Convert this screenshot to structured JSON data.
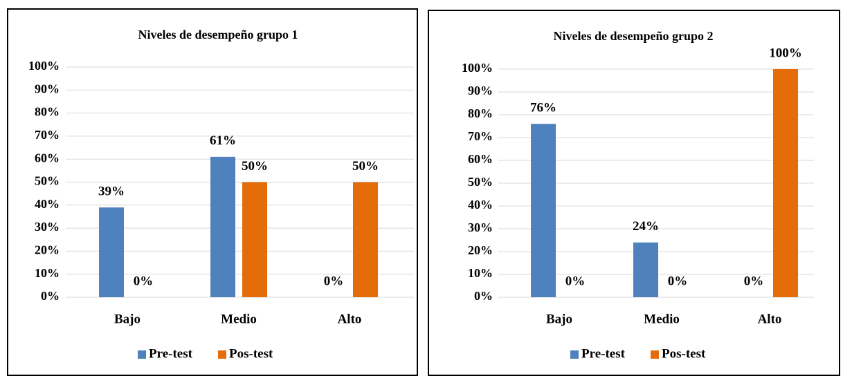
{
  "chart_data": [
    {
      "type": "bar",
      "title": "Niveles de desempeño grupo 1",
      "categories": [
        "Bajo",
        "Medio",
        "Alto"
      ],
      "series": [
        {
          "name": "Pre-test",
          "color": "#4f81bd",
          "values": [
            39,
            61,
            0
          ],
          "value_labels": [
            "39%",
            "61%",
            "0%"
          ]
        },
        {
          "name": "Pos-test",
          "color": "#e46c0a",
          "values": [
            0,
            50,
            50
          ],
          "value_labels": [
            "0%",
            "50%",
            "50%"
          ]
        }
      ],
      "ylim": [
        0,
        100
      ],
      "yticks": [
        {
          "value": 0,
          "label": "0%"
        },
        {
          "value": 10,
          "label": "10%"
        },
        {
          "value": 20,
          "label": "20%"
        },
        {
          "value": 30,
          "label": "30%"
        },
        {
          "value": 40,
          "label": "40%"
        },
        {
          "value": 50,
          "label": "50%"
        },
        {
          "value": 60,
          "label": "60%"
        },
        {
          "value": 70,
          "label": "70%"
        },
        {
          "value": 80,
          "label": "80%"
        },
        {
          "value": 90,
          "label": "90%"
        },
        {
          "value": 100,
          "label": "100%"
        }
      ],
      "grid": true,
      "legend": "bottom"
    },
    {
      "type": "bar",
      "title": "Niveles de desempeño grupo 2",
      "categories": [
        "Bajo",
        "Medio",
        "Alto"
      ],
      "series": [
        {
          "name": "Pre-test",
          "color": "#4f81bd",
          "values": [
            76,
            24,
            0
          ],
          "value_labels": [
            "76%",
            "24%",
            "0%"
          ]
        },
        {
          "name": "Pos-test",
          "color": "#e46c0a",
          "values": [
            0,
            0,
            100
          ],
          "value_labels": [
            "0%",
            "0%",
            "100%"
          ]
        }
      ],
      "ylim": [
        0,
        100
      ],
      "yticks": [
        {
          "value": 0,
          "label": "0%"
        },
        {
          "value": 10,
          "label": "10%"
        },
        {
          "value": 20,
          "label": "20%"
        },
        {
          "value": 30,
          "label": "30%"
        },
        {
          "value": 40,
          "label": "40%"
        },
        {
          "value": 50,
          "label": "50%"
        },
        {
          "value": 60,
          "label": "60%"
        },
        {
          "value": 70,
          "label": "70%"
        },
        {
          "value": 80,
          "label": "80%"
        },
        {
          "value": 90,
          "label": "90%"
        },
        {
          "value": 100,
          "label": "100%"
        }
      ],
      "grid": true,
      "legend": "bottom"
    }
  ]
}
